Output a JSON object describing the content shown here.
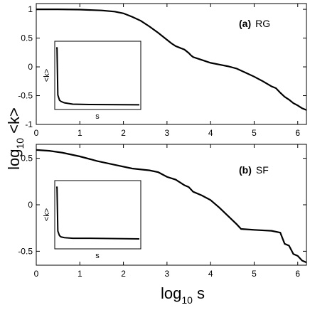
{
  "figure": {
    "ylabel_main": "log",
    "ylabel_sub": "10",
    "ylabel_tail": " <k>",
    "xlabel_main": "log",
    "xlabel_sub": "10",
    "xlabel_tail": " s"
  },
  "chart_data": [
    {
      "type": "line",
      "panel_label_letter": "(a)",
      "panel_label_text": "RG",
      "xlim": [
        0,
        6.2
      ],
      "ylim": [
        -1,
        1.1
      ],
      "xticks": [
        "0",
        "1",
        "2",
        "3",
        "4",
        "5",
        "6"
      ],
      "yticks": [
        "-1",
        "-0.5",
        "0",
        "0.5",
        "1"
      ],
      "xtick_values": [
        0,
        1,
        2,
        3,
        4,
        5,
        6
      ],
      "ytick_values": [
        -1,
        -0.5,
        0,
        0.5,
        1
      ],
      "series": [
        {
          "x": [
            0,
            0.5,
            1.0,
            1.5,
            1.8,
            2.0,
            2.2,
            2.4,
            2.6,
            2.8,
            3.0,
            3.1,
            3.2,
            3.3,
            3.4,
            3.5,
            3.55,
            3.6,
            3.8,
            4.0,
            4.2,
            4.4,
            4.6,
            4.8,
            5.0,
            5.2,
            5.4,
            5.5,
            5.6,
            5.7,
            5.8,
            5.9,
            6.0,
            6.1,
            6.2
          ],
          "y": [
            1.0,
            1.0,
            0.995,
            0.98,
            0.96,
            0.93,
            0.87,
            0.8,
            0.7,
            0.59,
            0.47,
            0.41,
            0.36,
            0.33,
            0.3,
            0.24,
            0.2,
            0.17,
            0.12,
            0.07,
            0.04,
            0.01,
            -0.03,
            -0.1,
            -0.17,
            -0.25,
            -0.34,
            -0.37,
            -0.45,
            -0.52,
            -0.57,
            -0.63,
            -0.67,
            -0.72,
            -0.75
          ]
        }
      ],
      "inset": {
        "xlabel": "s",
        "ylabel": "<k>",
        "type": "line",
        "note": "sharp initial drop then flat plateau",
        "x": [
          0,
          0.01,
          0.02,
          0.04,
          0.06,
          0.1,
          0.2,
          0.4,
          1.0
        ],
        "y": [
          0.92,
          0.92,
          0.2,
          0.12,
          0.1,
          0.08,
          0.06,
          0.055,
          0.05
        ]
      }
    },
    {
      "type": "line",
      "panel_label_letter": "(b)",
      "panel_label_text": "SF",
      "xlim": [
        0,
        6.2
      ],
      "ylim": [
        -0.65,
        0.65
      ],
      "xticks": [
        "0",
        "1",
        "2",
        "3",
        "4",
        "5",
        "6"
      ],
      "yticks": [
        "-0.5",
        "0",
        "0.5"
      ],
      "xtick_values": [
        0,
        1,
        2,
        3,
        4,
        5,
        6
      ],
      "ytick_values": [
        -0.5,
        0,
        0.5
      ],
      "series": [
        {
          "x": [
            0,
            0.3,
            0.6,
            1.0,
            1.4,
            1.8,
            2.2,
            2.6,
            2.8,
            3.0,
            3.2,
            3.4,
            3.5,
            3.6,
            3.8,
            4.0,
            4.2,
            4.4,
            4.6,
            4.7,
            5.0,
            5.4,
            5.6,
            5.7,
            5.8,
            5.9,
            6.0,
            6.1,
            6.2
          ],
          "y": [
            0.59,
            0.58,
            0.56,
            0.52,
            0.47,
            0.43,
            0.39,
            0.37,
            0.35,
            0.3,
            0.27,
            0.21,
            0.19,
            0.14,
            0.1,
            0.05,
            -0.03,
            -0.12,
            -0.21,
            -0.26,
            -0.27,
            -0.28,
            -0.3,
            -0.42,
            -0.44,
            -0.53,
            -0.55,
            -0.6,
            -0.62
          ]
        }
      ],
      "inset": {
        "xlabel": "s",
        "ylabel": "<k>",
        "type": "line",
        "note": "sharp initial drop then flat plateau",
        "x": [
          0,
          0.01,
          0.02,
          0.04,
          0.06,
          0.1,
          0.2,
          0.4,
          1.0
        ],
        "y": [
          0.92,
          0.92,
          0.25,
          0.18,
          0.16,
          0.15,
          0.14,
          0.14,
          0.13
        ]
      }
    }
  ]
}
